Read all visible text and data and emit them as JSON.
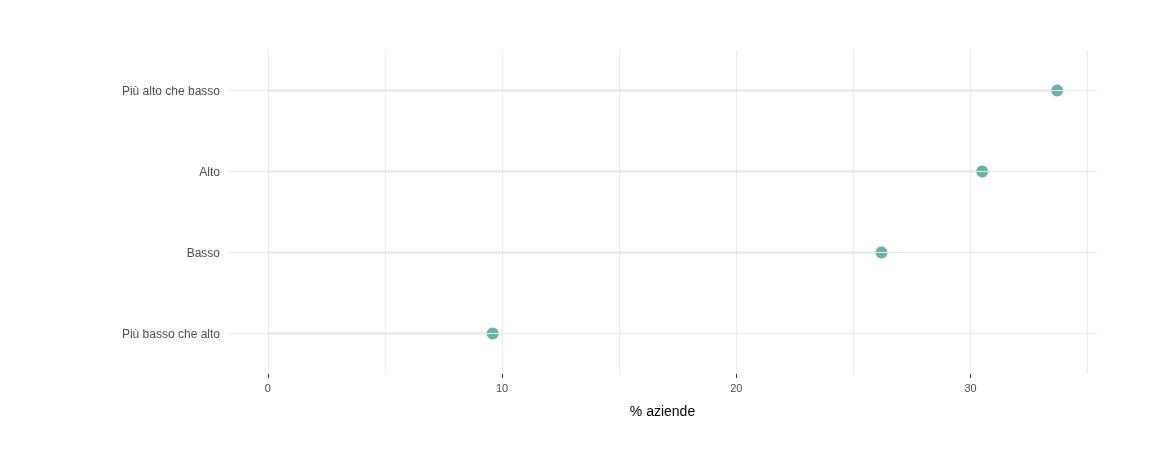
{
  "chart_data": {
    "type": "lollipop",
    "orientation": "horizontal",
    "xlabel": "% aziende",
    "categories": [
      "Più alto che basso",
      "Alto",
      "Basso",
      "Più basso che alto"
    ],
    "values": [
      33.7,
      30.5,
      26.2,
      9.6
    ],
    "color": "#69b3a2",
    "xlim": [
      -1.7,
      35.4
    ],
    "xticks": [
      0,
      {
        "value": 5,
        "label": null
      },
      10,
      {
        "value": 15,
        "label": null
      },
      20,
      {
        "value": 25,
        "label": null
      },
      30,
      {
        "value": 35,
        "label": null
      }
    ],
    "grid": true,
    "marker": "circle"
  }
}
